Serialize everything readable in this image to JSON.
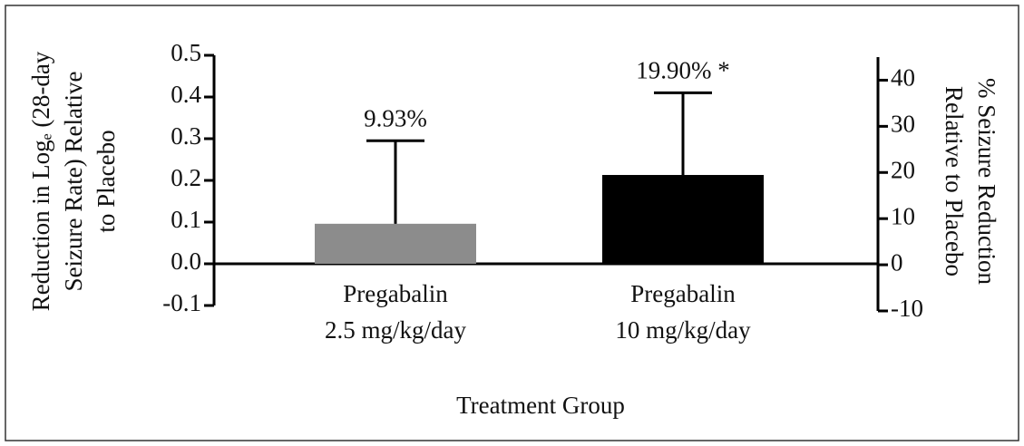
{
  "chart_data": {
    "type": "bar",
    "categories": [
      [
        "Pregabalin",
        "2.5 mg/kg/day"
      ],
      [
        "Pregabalin",
        "10 mg/kg/day"
      ]
    ],
    "values": [
      0.096,
      0.213
    ],
    "errors": [
      0.199,
      0.197
    ],
    "colors": [
      "#8c8c8c",
      "#000000"
    ],
    "annotations": [
      "9.93%",
      "19.90% *"
    ],
    "ylabel": [
      "Reduction in Logₑ (28-day",
      "Seizure Rate) Relative",
      "to Placebo"
    ],
    "y2label": [
      "% Seizure Reduction",
      "Relative to Placebo"
    ],
    "xlabel": "Treatment Group",
    "ylim": [
      -0.1,
      0.5
    ],
    "yticks": [
      -0.1,
      {
        "value": 0,
        "label": "0.0"
      },
      0.1,
      0.2,
      0.3,
      0.4,
      0.5
    ],
    "y2lim": [
      -10,
      45
    ],
    "y2ticks": [
      -10,
      0,
      10,
      20,
      30,
      40
    ]
  }
}
